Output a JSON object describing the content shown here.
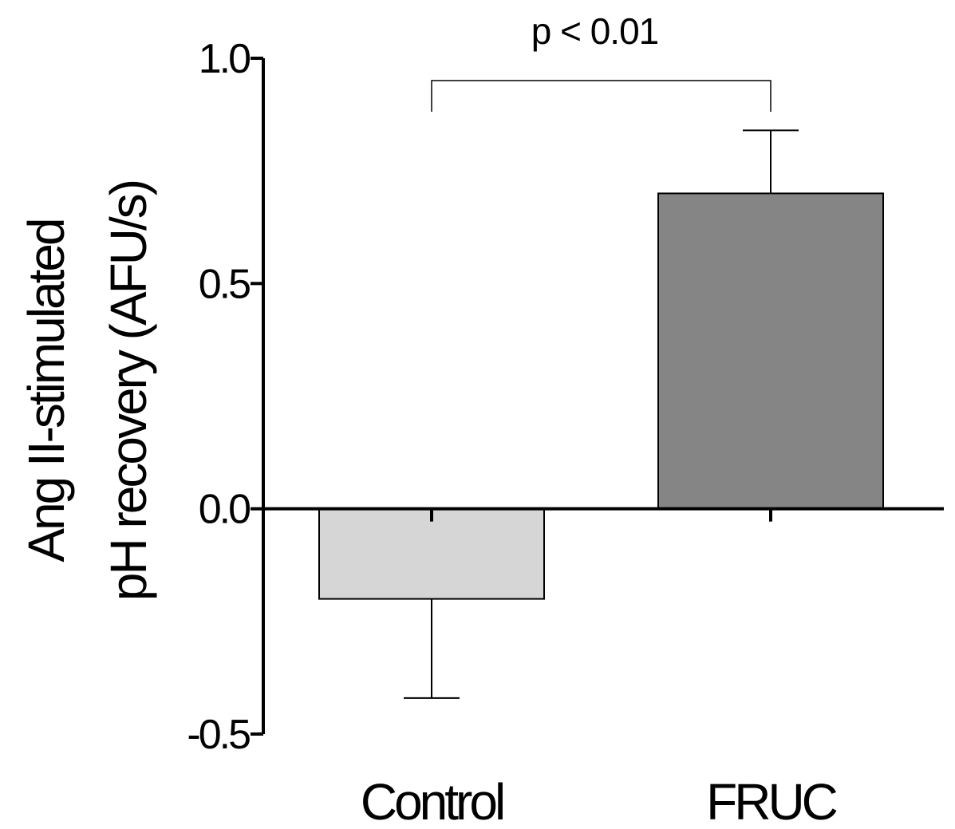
{
  "chart_data": {
    "type": "bar",
    "categories": [
      "Control",
      "FRUC"
    ],
    "values": [
      -0.2,
      0.7
    ],
    "errors": [
      0.22,
      0.14
    ],
    "ylabel_lines": [
      "Ang II-stimulated",
      "pH recovery (AFU/s)"
    ],
    "xlabel": "",
    "ylim": [
      -0.5,
      1.0
    ],
    "yticks": [
      -0.5,
      0.0,
      0.5,
      1.0
    ],
    "ytick_labels": [
      "-0.5",
      "0.0",
      "0.5",
      "1.0"
    ],
    "bar_colors": [
      "#d6d6d6",
      "#858585"
    ],
    "grid": false,
    "annotations": [
      {
        "text": "p < 0.01",
        "between": [
          "Control",
          "FRUC"
        ],
        "type": "significance-bracket"
      }
    ]
  }
}
